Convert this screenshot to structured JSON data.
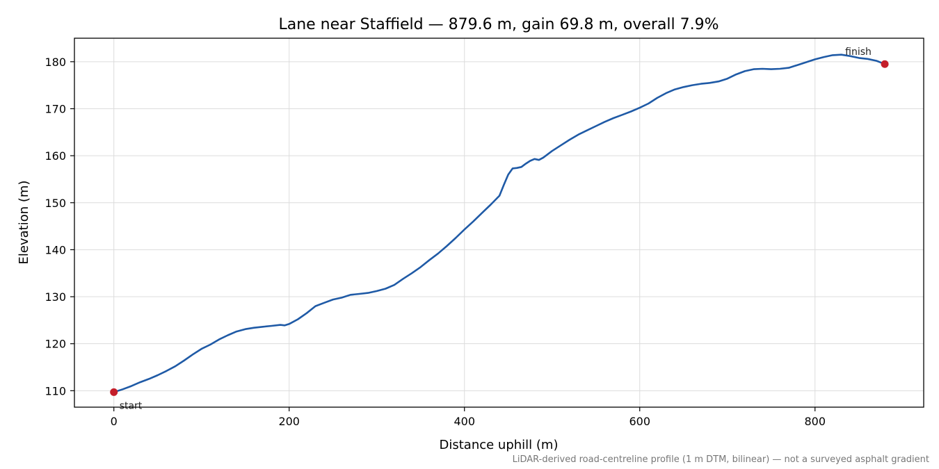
{
  "chart_data": {
    "type": "line",
    "title": "Lane near Staffield — 879.6 m, gain 69.8 m, overall 7.9%",
    "xlabel": "Distance uphill (m)",
    "ylabel": "Elevation (m)",
    "xlim": [
      -45,
      924
    ],
    "ylim": [
      106.5,
      185
    ],
    "xticks": [
      0,
      200,
      400,
      600,
      800
    ],
    "yticks": [
      110,
      120,
      130,
      140,
      150,
      160,
      170,
      180
    ],
    "grid": true,
    "series": [
      {
        "color": "#1f5aa6",
        "x": [
          0,
          10,
          20,
          30,
          40,
          50,
          60,
          70,
          80,
          90,
          100,
          110,
          120,
          130,
          140,
          150,
          160,
          170,
          180,
          190,
          195,
          200,
          210,
          220,
          230,
          240,
          250,
          260,
          270,
          280,
          290,
          300,
          310,
          320,
          330,
          340,
          350,
          360,
          370,
          380,
          390,
          400,
          410,
          420,
          430,
          440,
          445,
          450,
          455,
          460,
          465,
          470,
          475,
          480,
          485,
          490,
          500,
          510,
          520,
          530,
          540,
          550,
          560,
          570,
          580,
          590,
          600,
          610,
          620,
          630,
          640,
          650,
          660,
          670,
          680,
          690,
          700,
          710,
          720,
          730,
          740,
          750,
          760,
          770,
          780,
          790,
          800,
          810,
          820,
          830,
          840,
          850,
          860,
          870,
          879.6
        ],
        "y": [
          109.7,
          110.3,
          111.0,
          111.8,
          112.5,
          113.3,
          114.2,
          115.2,
          116.4,
          117.7,
          118.9,
          119.8,
          120.9,
          121.8,
          122.6,
          123.1,
          123.4,
          123.6,
          123.8,
          124.0,
          123.9,
          124.2,
          125.2,
          126.5,
          128.0,
          128.7,
          129.4,
          129.8,
          130.4,
          130.6,
          130.8,
          131.2,
          131.7,
          132.5,
          133.8,
          135.0,
          136.3,
          137.8,
          139.2,
          140.8,
          142.5,
          144.3,
          146.0,
          147.8,
          149.6,
          151.5,
          153.8,
          156.0,
          157.3,
          157.4,
          157.6,
          158.3,
          158.9,
          159.3,
          159.1,
          159.6,
          161.0,
          162.2,
          163.4,
          164.5,
          165.4,
          166.3,
          167.2,
          168.0,
          168.7,
          169.4,
          170.2,
          171.1,
          172.3,
          173.3,
          174.1,
          174.6,
          175.0,
          175.3,
          175.5,
          175.8,
          176.4,
          177.3,
          178.0,
          178.4,
          178.5,
          178.4,
          178.5,
          178.7,
          179.3,
          179.9,
          180.5,
          181.0,
          181.4,
          181.5,
          181.2,
          180.8,
          180.6,
          180.2,
          179.5
        ]
      }
    ],
    "markers": [
      {
        "x": 0,
        "y": 109.7,
        "label": "start",
        "color": "#c41e2a"
      },
      {
        "x": 879.6,
        "y": 179.5,
        "label": "finish",
        "color": "#c41e2a"
      }
    ],
    "footnote": "LiDAR-derived road-centreline profile (1 m DTM, bilinear) — not a surveyed asphalt gradient"
  }
}
